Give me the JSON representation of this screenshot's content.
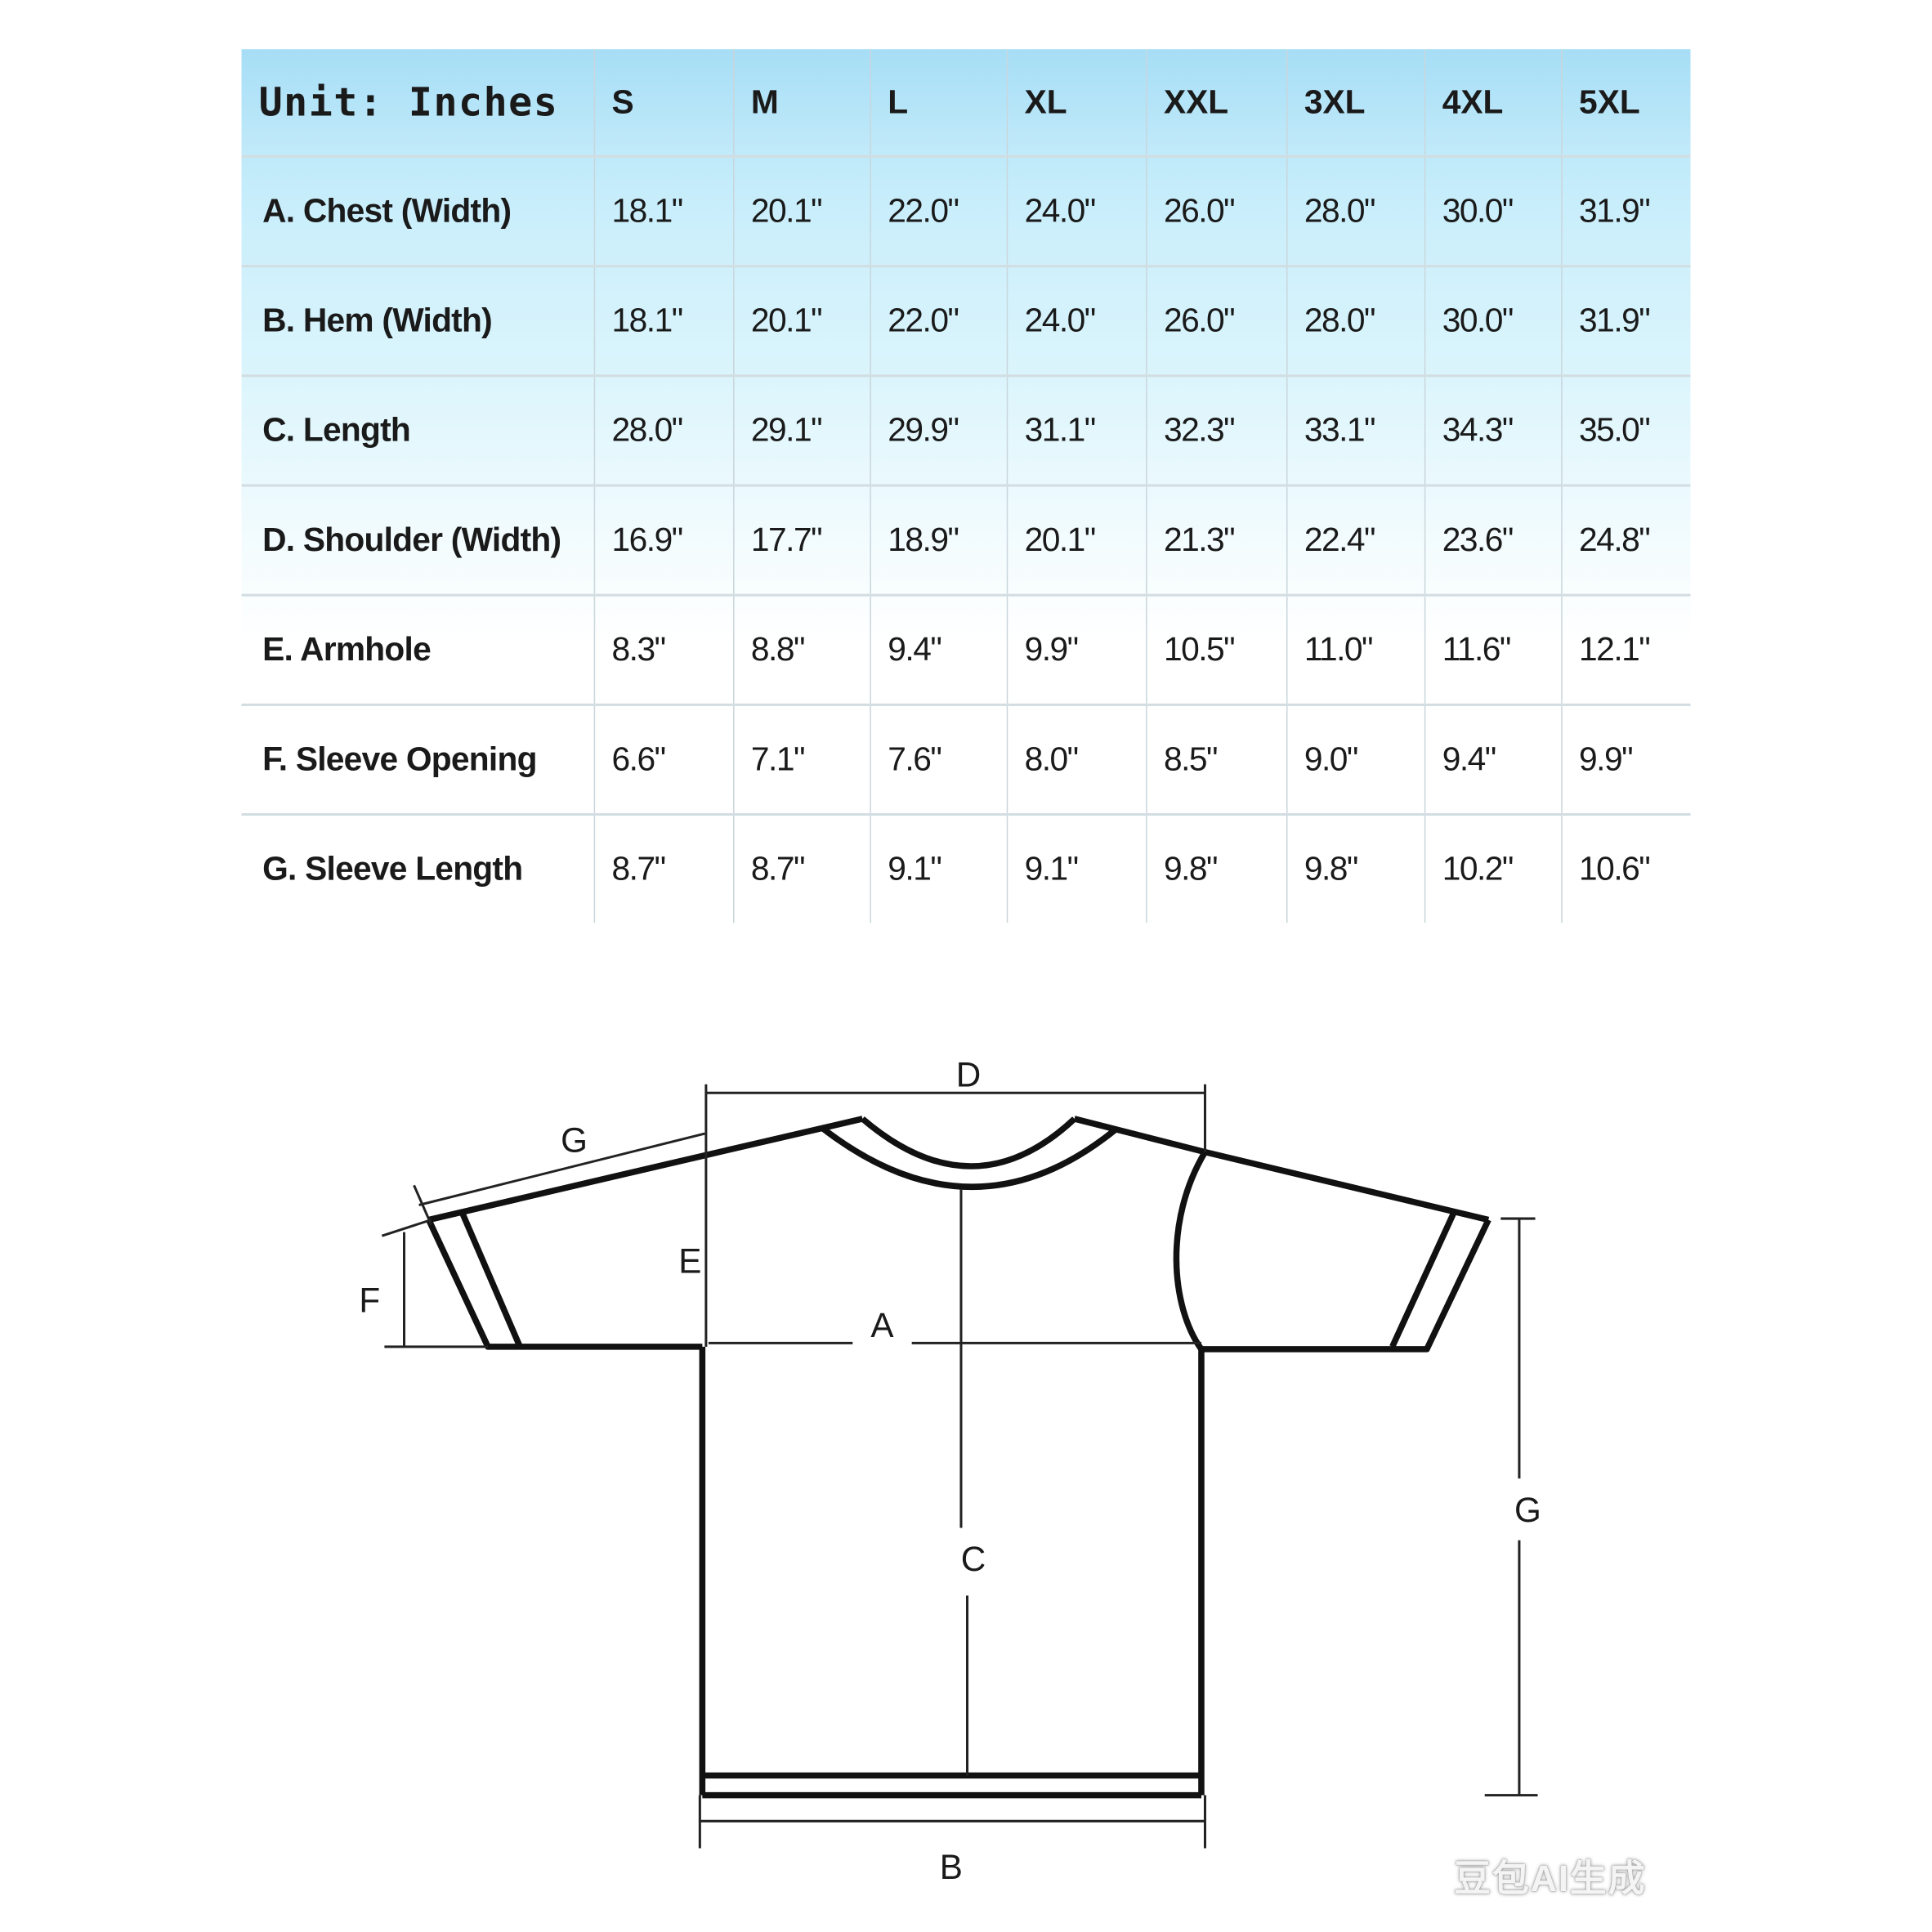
{
  "table": {
    "unit_label": "Unit:  Inches",
    "sizes": [
      "S",
      "M",
      "L",
      "XL",
      "XXL",
      "3XL",
      "4XL",
      "5XL"
    ],
    "rows": [
      {
        "label": "A. Chest (Width)",
        "values": [
          "18.1\"",
          "20.1\"",
          "22.0\"",
          "24.0\"",
          "26.0\"",
          "28.0\"",
          "30.0\"",
          "31.9\""
        ]
      },
      {
        "label": "B. Hem (Width)",
        "values": [
          "18.1\"",
          "20.1\"",
          "22.0\"",
          "24.0\"",
          "26.0\"",
          "28.0\"",
          "30.0\"",
          "31.9\""
        ]
      },
      {
        "label": "C. Length",
        "values": [
          "28.0\"",
          "29.1\"",
          "29.9\"",
          "31.1\"",
          "32.3\"",
          "33.1\"",
          "34.3\"",
          "35.0\""
        ]
      },
      {
        "label": "D. Shoulder (Width)",
        "values": [
          "16.9\"",
          "17.7\"",
          "18.9\"",
          "20.1\"",
          "21.3\"",
          "22.4\"",
          "23.6\"",
          "24.8\""
        ]
      },
      {
        "label": "E. Armhole",
        "values": [
          "8.3\"",
          "8.8\"",
          "9.4\"",
          "9.9\"",
          "10.5\"",
          "11.0\"",
          "11.6\"",
          "12.1\""
        ]
      },
      {
        "label": "F. Sleeve Opening",
        "values": [
          "6.6\"",
          "7.1\"",
          "7.6\"",
          "8.0\"",
          "8.5\"",
          "9.0\"",
          "9.4\"",
          "9.9\""
        ]
      },
      {
        "label": "G. Sleeve Length",
        "values": [
          "8.7\"",
          "8.7\"",
          "9.1\"",
          "9.1\"",
          "9.8\"",
          "9.8\"",
          "10.2\"",
          "10.6\""
        ]
      }
    ],
    "colors": {
      "header_bg": "#a9e1f8",
      "fade_to": "#ffffff"
    }
  },
  "diagram": {
    "labels": {
      "A": "A",
      "B": "B",
      "C": "C",
      "D": "D",
      "E": "E",
      "F": "F",
      "G_sleeve": "G",
      "G_right": "G"
    }
  },
  "watermark": "豆包AI生成"
}
